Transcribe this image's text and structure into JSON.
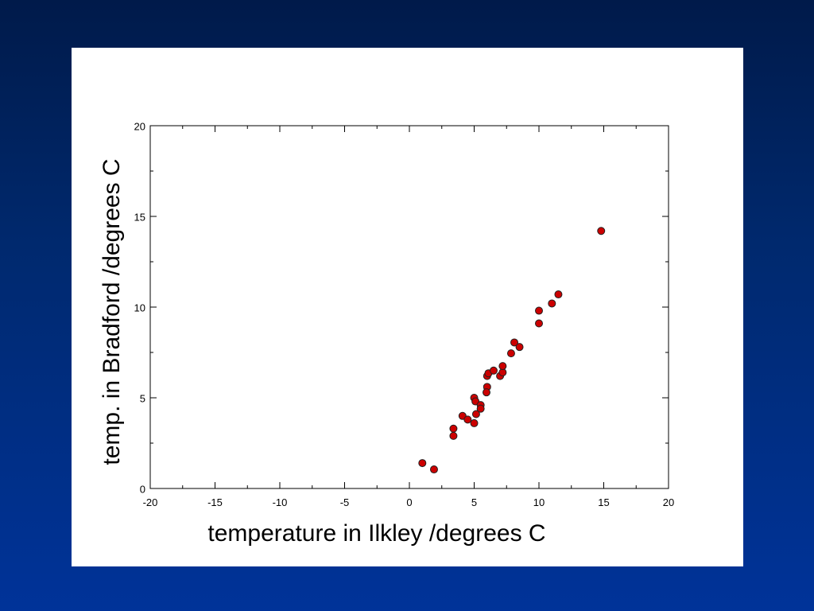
{
  "chart_data": {
    "type": "scatter",
    "x_label": "temperature in Ilkley /degrees C",
    "y_label": "temp. in Bradford /degrees C",
    "x": [
      1.0,
      1.9,
      3.4,
      3.4,
      4.1,
      4.5,
      5.0,
      5.15,
      5.0,
      5.1,
      5.5,
      5.5,
      6.0,
      5.95,
      6.0,
      6.1,
      6.5,
      7.0,
      7.2,
      7.2,
      7.85,
      8.1,
      8.5,
      10.0,
      10.0,
      11.0,
      11.5,
      14.8
    ],
    "y": [
      1.4,
      1.05,
      3.3,
      2.9,
      4.0,
      3.8,
      3.6,
      4.1,
      5.0,
      4.8,
      4.6,
      4.4,
      5.6,
      5.3,
      6.2,
      6.35,
      6.5,
      6.2,
      6.4,
      6.75,
      7.45,
      8.05,
      7.8,
      9.8,
      9.1,
      10.2,
      10.7,
      14.2
    ],
    "color": "#cc0000",
    "xlim": [
      -20,
      20
    ],
    "xticks": [
      -20,
      -15,
      -10,
      -5,
      0,
      5,
      10,
      15,
      20
    ],
    "ylim": [
      0,
      20
    ],
    "yticks": [
      0,
      5,
      10,
      15,
      20
    ]
  }
}
